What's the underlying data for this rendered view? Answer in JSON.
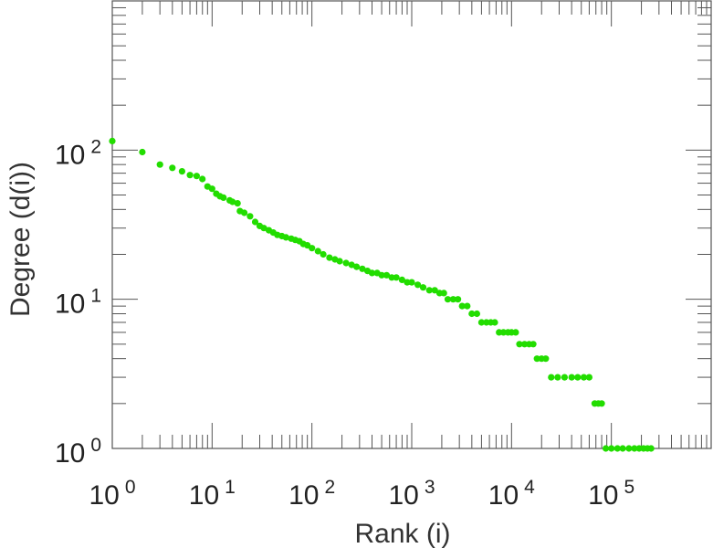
{
  "chart_data": {
    "type": "scatter",
    "title": "",
    "xlabel": "Rank (i)",
    "ylabel": "Degree (d(i))",
    "xscale": "log",
    "yscale": "log",
    "xlim": [
      1,
      1000000
    ],
    "ylim": [
      1,
      1000
    ],
    "grid": false,
    "legend": "none",
    "marker_color": "#22dd00",
    "x_tick_labels": [
      {
        "value": 1,
        "base": "10",
        "exp": "0"
      },
      {
        "value": 10,
        "base": "10",
        "exp": "1"
      },
      {
        "value": 100,
        "base": "10",
        "exp": "2"
      },
      {
        "value": 1000,
        "base": "10",
        "exp": "3"
      },
      {
        "value": 10000,
        "base": "10",
        "exp": "4"
      },
      {
        "value": 100000,
        "base": "10",
        "exp": "5"
      }
    ],
    "y_tick_labels": [
      {
        "value": 1,
        "base": "10",
        "exp": "0"
      },
      {
        "value": 10,
        "base": "10",
        "exp": "1"
      },
      {
        "value": 100,
        "base": "10",
        "exp": "2"
      }
    ],
    "series": [
      {
        "points": [
          [
            1,
            115
          ],
          [
            2,
            97
          ],
          [
            3,
            80
          ],
          [
            4,
            76
          ],
          [
            5,
            72
          ],
          [
            6,
            68
          ],
          [
            7,
            67
          ],
          [
            8,
            64
          ],
          [
            9,
            57
          ],
          [
            10,
            55
          ],
          [
            11,
            51
          ],
          [
            12,
            49
          ],
          [
            13,
            48
          ],
          [
            15,
            46
          ],
          [
            16,
            45
          ],
          [
            18,
            44
          ],
          [
            19,
            39
          ],
          [
            21,
            38
          ],
          [
            24,
            36
          ],
          [
            27,
            33
          ],
          [
            30,
            31
          ],
          [
            33,
            30
          ],
          [
            37,
            29
          ],
          [
            41,
            28
          ],
          [
            45,
            27
          ],
          [
            50,
            26.5
          ],
          [
            55,
            26
          ],
          [
            62,
            25.5
          ],
          [
            68,
            25
          ],
          [
            75,
            24.5
          ],
          [
            82,
            23.5
          ],
          [
            90,
            23
          ],
          [
            100,
            22
          ],
          [
            115,
            21
          ],
          [
            130,
            20
          ],
          [
            150,
            19
          ],
          [
            170,
            18.5
          ],
          [
            190,
            18
          ],
          [
            220,
            17.5
          ],
          [
            250,
            17
          ],
          [
            280,
            16.5
          ],
          [
            320,
            16
          ],
          [
            360,
            15.5
          ],
          [
            400,
            15
          ],
          [
            450,
            15
          ],
          [
            500,
            14.5
          ],
          [
            560,
            14.5
          ],
          [
            630,
            14
          ],
          [
            700,
            14
          ],
          [
            800,
            13.5
          ],
          [
            900,
            13
          ],
          [
            1000,
            13
          ],
          [
            1150,
            12.5
          ],
          [
            1300,
            12
          ],
          [
            1500,
            11.5
          ],
          [
            1700,
            11.5
          ],
          [
            1900,
            11
          ],
          [
            2100,
            11
          ],
          [
            2300,
            10
          ],
          [
            2600,
            10
          ],
          [
            2900,
            10
          ],
          [
            3200,
            9
          ],
          [
            3600,
            9
          ],
          [
            4000,
            8
          ],
          [
            4500,
            8
          ],
          [
            5000,
            7
          ],
          [
            5600,
            7
          ],
          [
            6200,
            7
          ],
          [
            6800,
            7
          ],
          [
            7500,
            6
          ],
          [
            8300,
            6
          ],
          [
            9200,
            6
          ],
          [
            10000,
            6
          ],
          [
            11000,
            6
          ],
          [
            12000,
            5
          ],
          [
            13500,
            5
          ],
          [
            15000,
            5
          ],
          [
            16500,
            5
          ],
          [
            18000,
            4
          ],
          [
            20000,
            4
          ],
          [
            22000,
            4
          ],
          [
            25000,
            3
          ],
          [
            29000,
            3
          ],
          [
            34000,
            3
          ],
          [
            40000,
            3
          ],
          [
            46000,
            3
          ],
          [
            53000,
            3
          ],
          [
            60000,
            3
          ],
          [
            68000,
            2
          ],
          [
            74000,
            2
          ],
          [
            80000,
            2
          ],
          [
            88000,
            1
          ],
          [
            100000,
            1
          ],
          [
            115000,
            1
          ],
          [
            130000,
            1
          ],
          [
            150000,
            1
          ],
          [
            170000,
            1
          ],
          [
            190000,
            1
          ],
          [
            210000,
            1
          ],
          [
            230000,
            1
          ],
          [
            250000,
            1
          ]
        ]
      }
    ]
  }
}
